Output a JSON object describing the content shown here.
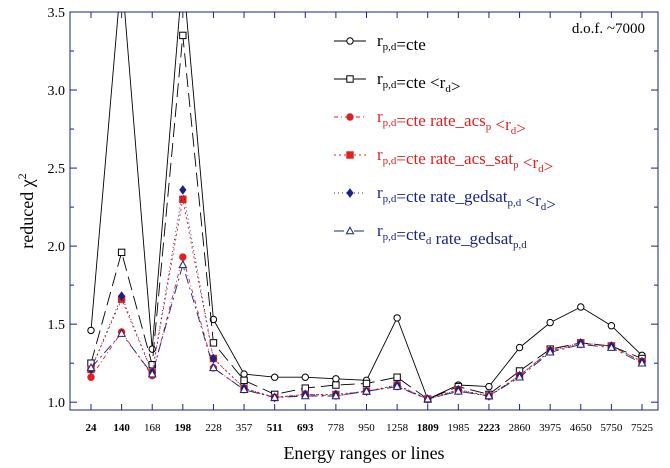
{
  "chart_data": {
    "type": "line",
    "xlabel": "Energy ranges or lines",
    "ylabel_main": "reduced χ",
    "ylabel_sup": "2",
    "annotation": "d.o.f. ~7000",
    "ylim": [
      0.95,
      3.5
    ],
    "yticks": [
      "1.0",
      "1.5",
      "2.0",
      "2.5",
      "3.0",
      "3.5"
    ],
    "ytick_values": [
      1.0,
      1.5,
      2.0,
      2.5,
      3.0,
      3.5
    ],
    "categories": [
      "24",
      "140",
      "168",
      "198",
      "228",
      "357",
      "511",
      "693",
      "778",
      "950",
      "1258",
      "1809",
      "1985",
      "2223",
      "2860",
      "3975",
      "4650",
      "5750",
      "7525"
    ],
    "bold_categories": [
      "24",
      "140",
      "198",
      "511",
      "693",
      "1809",
      "2223"
    ],
    "legend_position": "top-right",
    "grid": false,
    "series": [
      {
        "name_parts": [
          [
            "r",
            ""
          ],
          [
            "p,d",
            "sub"
          ],
          [
            "=cte",
            ""
          ]
        ],
        "color": "#000000",
        "marker": "circle-open",
        "dash": "",
        "values": [
          1.46,
          3.75,
          1.34,
          3.75,
          1.53,
          1.18,
          1.16,
          1.16,
          1.15,
          1.14,
          1.54,
          1.02,
          1.11,
          1.1,
          1.35,
          1.51,
          1.61,
          1.49,
          1.3
        ]
      },
      {
        "name_parts": [
          [
            "r",
            ""
          ],
          [
            "p,d",
            "sub"
          ],
          [
            "=cte <r",
            ""
          ],
          [
            "d",
            "sub"
          ],
          [
            ">",
            ""
          ]
        ],
        "color": "#000000",
        "marker": "square-open",
        "dash": "14,6",
        "values": [
          1.25,
          1.96,
          1.24,
          3.35,
          1.38,
          1.14,
          1.05,
          1.09,
          1.11,
          1.12,
          1.16,
          1.02,
          1.1,
          1.05,
          1.2,
          1.34,
          1.38,
          1.36,
          1.28
        ]
      },
      {
        "name_parts": [
          [
            "r",
            ""
          ],
          [
            "p,d",
            "sub"
          ],
          [
            "=cte rate_acs",
            ""
          ],
          [
            "p",
            "sub"
          ],
          [
            " <r",
            ""
          ],
          [
            "d",
            "sub"
          ],
          [
            ">",
            ""
          ]
        ],
        "color": "#e02020",
        "marker": "circle",
        "dash": "4,3,1,3",
        "values": [
          1.16,
          1.45,
          1.17,
          1.93,
          1.22,
          1.08,
          1.03,
          1.05,
          1.04,
          1.07,
          1.1,
          1.02,
          1.07,
          1.04,
          1.17,
          1.33,
          1.37,
          1.36,
          1.26
        ]
      },
      {
        "name_parts": [
          [
            "r",
            ""
          ],
          [
            "p,d",
            "sub"
          ],
          [
            "=cte rate_acs_sat",
            ""
          ],
          [
            "p",
            "sub"
          ],
          [
            " <r",
            ""
          ],
          [
            "d",
            "sub"
          ],
          [
            ">",
            ""
          ]
        ],
        "color": "#e02020",
        "marker": "square",
        "dash": "2,3",
        "values": [
          1.21,
          1.66,
          1.19,
          2.3,
          1.28,
          1.09,
          1.03,
          1.05,
          1.05,
          1.07,
          1.11,
          1.02,
          1.08,
          1.04,
          1.17,
          1.33,
          1.38,
          1.36,
          1.26
        ]
      },
      {
        "name_parts": [
          [
            "r",
            ""
          ],
          [
            "p,d",
            "sub"
          ],
          [
            "=cte rate_gedsat",
            ""
          ],
          [
            "p,d",
            "sub"
          ],
          [
            " <r",
            ""
          ],
          [
            "d",
            "sub"
          ],
          [
            ">",
            ""
          ]
        ],
        "color": "#1a237e",
        "marker": "diamond",
        "dash": "1,3",
        "values": [
          1.21,
          1.68,
          1.19,
          2.36,
          1.28,
          1.09,
          1.03,
          1.05,
          1.05,
          1.07,
          1.11,
          1.02,
          1.08,
          1.04,
          1.17,
          1.33,
          1.38,
          1.36,
          1.26
        ]
      },
      {
        "name_parts": [
          [
            "r",
            ""
          ],
          [
            "p,d",
            "sub"
          ],
          [
            "=cte",
            ""
          ],
          [
            "d",
            "sub"
          ],
          [
            " rate_gedsat",
            ""
          ],
          [
            "p,d",
            "sub"
          ]
        ],
        "color": "#1a237e",
        "marker": "triangle-open",
        "dash": "10,4,2,4",
        "values": [
          1.22,
          1.44,
          1.18,
          1.88,
          1.22,
          1.08,
          1.03,
          1.04,
          1.04,
          1.07,
          1.1,
          1.02,
          1.07,
          1.04,
          1.16,
          1.32,
          1.37,
          1.35,
          1.25
        ]
      }
    ]
  }
}
